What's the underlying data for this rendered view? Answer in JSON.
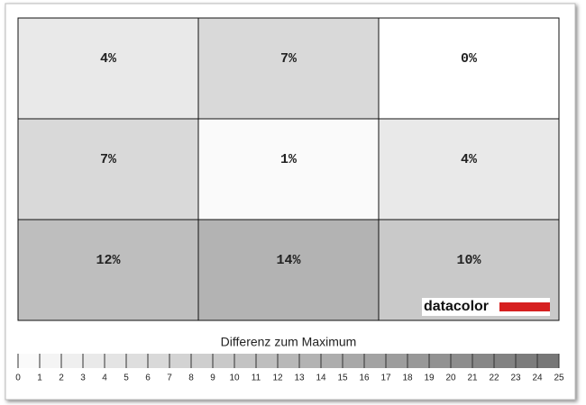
{
  "chart_data": {
    "type": "heatmap",
    "title": "Differenz zum Maximum",
    "values": [
      [
        4,
        7,
        0
      ],
      [
        7,
        1,
        4
      ],
      [
        12,
        14,
        10
      ]
    ],
    "value_labels": [
      [
        "4%",
        "7%",
        "0%"
      ],
      [
        "7%",
        "1%",
        "4%"
      ],
      [
        "12%",
        "14%",
        "10%"
      ]
    ],
    "clim": [
      0,
      25
    ],
    "cticks": [
      0,
      1,
      2,
      3,
      4,
      5,
      6,
      7,
      8,
      9,
      10,
      11,
      12,
      13,
      14,
      15,
      16,
      17,
      18,
      19,
      20,
      21,
      22,
      23,
      24,
      25
    ],
    "color_low": "#ffffff",
    "color_high": "#777777"
  },
  "logo": "datacolor"
}
